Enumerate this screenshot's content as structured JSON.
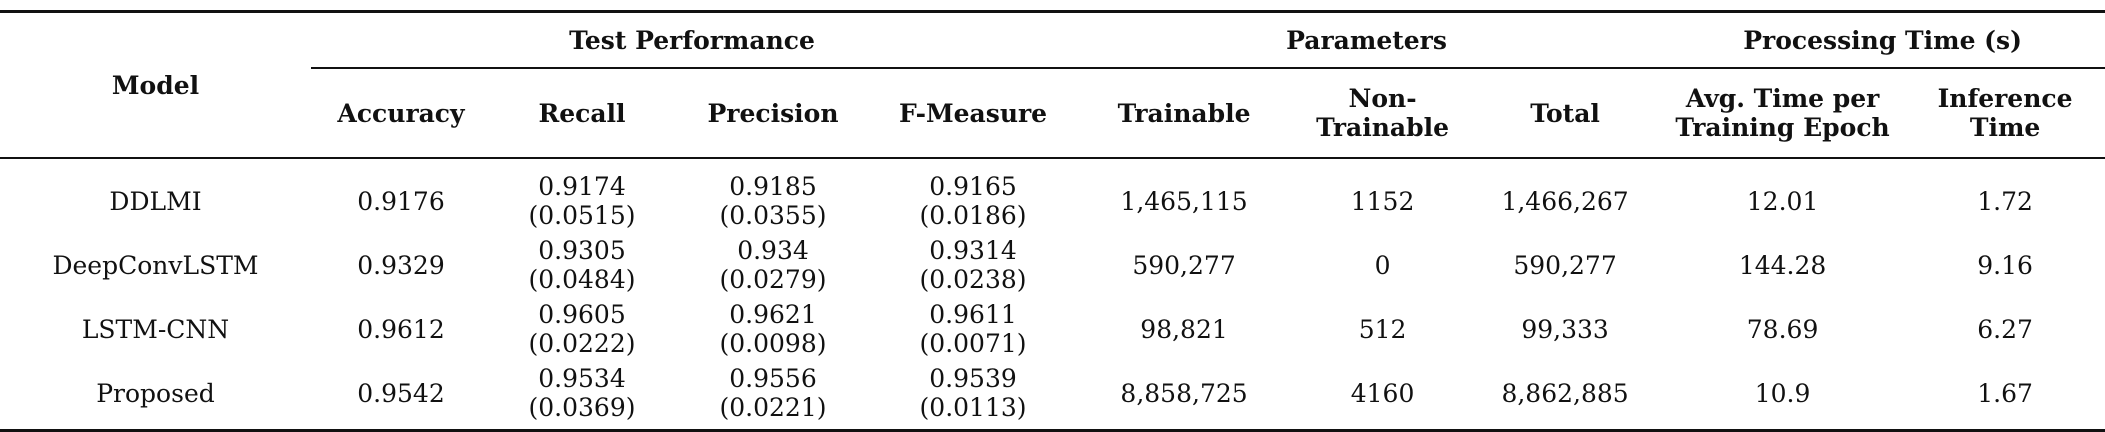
{
  "header": {
    "model": "Model",
    "groups": {
      "test_performance": "Test Performance",
      "parameters": "Parameters",
      "processing_time": "Processing Time (s)"
    },
    "columns": {
      "accuracy": "Accuracy",
      "recall": "Recall",
      "precision": "Precision",
      "f_measure": "F-Measure",
      "trainable": "Trainable",
      "non_trainable_1": "Non-",
      "non_trainable_2": "Trainable",
      "total": "Total",
      "avg_time_1": "Avg. Time per",
      "avg_time_2": "Training Epoch",
      "inference_1": "Inference",
      "inference_2": "Time"
    }
  },
  "rows": [
    {
      "model": "DDLMI",
      "accuracy": "0.9176",
      "recall": "0.9174",
      "recall_sd": "(0.0515)",
      "precision": "0.9185",
      "precision_sd": "(0.0355)",
      "f_measure": "0.9165",
      "f_measure_sd": "(0.0186)",
      "trainable": "1,465,115",
      "non_trainable": "1152",
      "total": "1,466,267",
      "avg_epoch": "12.01",
      "inference": "1.72"
    },
    {
      "model": "DeepConvLSTM",
      "accuracy": "0.9329",
      "recall": "0.9305",
      "recall_sd": "(0.0484)",
      "precision": "0.934",
      "precision_sd": "(0.0279)",
      "f_measure": "0.9314",
      "f_measure_sd": "(0.0238)",
      "trainable": "590,277",
      "non_trainable": "0",
      "total": "590,277",
      "avg_epoch": "144.28",
      "inference": "9.16"
    },
    {
      "model": "LSTM-CNN",
      "accuracy": "0.9612",
      "recall": "0.9605",
      "recall_sd": "(0.0222)",
      "precision": "0.9621",
      "precision_sd": "(0.0098)",
      "f_measure": "0.9611",
      "f_measure_sd": "(0.0071)",
      "trainable": "98,821",
      "non_trainable": "512",
      "total": "99,333",
      "avg_epoch": "78.69",
      "inference": "6.27"
    },
    {
      "model": "Proposed",
      "accuracy": "0.9542",
      "recall": "0.9534",
      "recall_sd": "(0.0369)",
      "precision": "0.9556",
      "precision_sd": "(0.0221)",
      "f_measure": "0.9539",
      "f_measure_sd": "(0.0113)",
      "trainable": "8,858,725",
      "non_trainable": "4160",
      "total": "8,862,885",
      "avg_epoch": "10.9",
      "inference": "1.67"
    }
  ]
}
